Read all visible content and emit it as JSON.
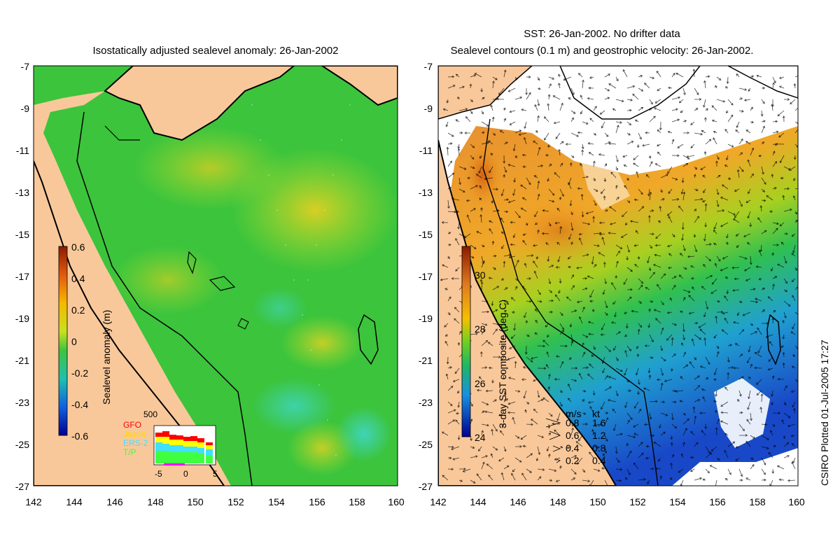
{
  "left_map": {
    "title": "Isostatically adjusted sealevel anomaly: 26-Jan-2002",
    "colorbar": {
      "label": "Sealevel anomaly (m)",
      "ticks": [
        "0.6",
        "0.4",
        "0.2",
        "0",
        "-0.2",
        "-0.4",
        "-0.6"
      ]
    },
    "inset": {
      "top_label": "500",
      "satellites": [
        {
          "name": "GFO",
          "color": "#ff0000"
        },
        {
          "name": "Jason",
          "color": "#ffff00"
        },
        {
          "name": "ERS-2",
          "color": "#40e0ff"
        },
        {
          "name": "T/P",
          "color": "#40ff40"
        }
      ],
      "x_ticks": [
        "-5",
        "0",
        "5"
      ]
    }
  },
  "right_map": {
    "title_line1": "SST: 26-Jan-2002. No drifter data",
    "title_line2": "Sealevel contours (0.1 m) and geostrophic velocity: 26-Jan-2002.",
    "colorbar": {
      "label": "3-day SST composite (deg C)",
      "ticks": [
        "30",
        "28",
        "26",
        "24"
      ]
    },
    "velocity_legend": {
      "header_ms": "m/s",
      "header_kt": "kt",
      "rows": [
        {
          "ms": "0.8",
          "kt": "1.6"
        },
        {
          "ms": "0.6",
          "kt": "1.2"
        },
        {
          "ms": "0.4",
          "kt": "0.8"
        },
        {
          "ms": "0.2",
          "kt": "0.4"
        }
      ]
    }
  },
  "axes": {
    "lat_ticks": [
      "-7",
      "-9",
      "-11",
      "-13",
      "-15",
      "-17",
      "-19",
      "-21",
      "-23",
      "-25",
      "-27"
    ],
    "lon_ticks": [
      "142",
      "144",
      "146",
      "148",
      "150",
      "152",
      "154",
      "156",
      "158",
      "160"
    ]
  },
  "credit": "CSIRO Plotted 01-Jul-2005 17:27",
  "colors": {
    "land": "#f9c89a",
    "ocean_mid": "#3cc43c",
    "sst_warm": "#e07a20"
  }
}
